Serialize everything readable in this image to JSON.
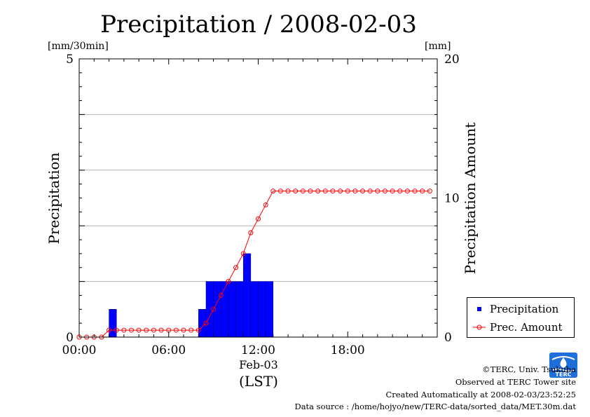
{
  "chart_data": {
    "type": "bar+line",
    "title": "Precipitation / 2008-02-03",
    "left_unit": "[mm/30min]",
    "right_unit": "[mm]",
    "ylabel": "Precipitation",
    "ylabel_right": "Precipitation Amount",
    "xlabel": "(LST)",
    "x_date_label": "Feb-03",
    "ylim": [
      0,
      5
    ],
    "ylim_right": [
      0,
      20
    ],
    "y_ticks": [
      "0",
      "5"
    ],
    "y_right_ticks": [
      "0",
      "10",
      "20"
    ],
    "x_tick_labels": [
      "00:00",
      "06:00",
      "12:00",
      "18:00"
    ],
    "x_tick_hours": [
      0,
      6,
      12,
      18
    ],
    "x_range_hours": [
      0,
      24
    ],
    "grid": "horizontal",
    "legend_position": "bottom-right",
    "series": [
      {
        "name": "Precipitation",
        "kind": "bar",
        "color": "#0000ff",
        "values": [
          0,
          0,
          0,
          0,
          0.5,
          0,
          0,
          0,
          0,
          0,
          0,
          0,
          0,
          0,
          0,
          0,
          0.5,
          1,
          1,
          1,
          1,
          1,
          1.5,
          1,
          1,
          1,
          0,
          0,
          0,
          0,
          0,
          0,
          0,
          0,
          0,
          0,
          0,
          0,
          0,
          0,
          0,
          0,
          0,
          0,
          0,
          0,
          0,
          0
        ]
      },
      {
        "name": "Prec. Amount",
        "kind": "line",
        "color": "#ff0000",
        "values": [
          0,
          0,
          0,
          0,
          0.5,
          0.5,
          0.5,
          0.5,
          0.5,
          0.5,
          0.5,
          0.5,
          0.5,
          0.5,
          0.5,
          0.5,
          0.5,
          1,
          2,
          3,
          4,
          5,
          6,
          7.5,
          8.5,
          9.5,
          10.5,
          10.5,
          10.5,
          10.5,
          10.5,
          10.5,
          10.5,
          10.5,
          10.5,
          10.5,
          10.5,
          10.5,
          10.5,
          10.5,
          10.5,
          10.5,
          10.5,
          10.5,
          10.5,
          10.5,
          10.5,
          10.5
        ]
      }
    ]
  },
  "legend": {
    "items": [
      "Precipitation",
      "Prec. Amount"
    ]
  },
  "footer": {
    "copyright": "©TERC, Univ. Tsukuba",
    "observed": "Observed at TERC Tower site",
    "created": "Created Automatically at 2008-02-03/23:52:25",
    "source": "Data source : /home/hojyo/new/TERC-data/sorted_data/MET.30m.dat"
  },
  "logo": {
    "text": "TERC",
    "color": "#1e6fd9"
  }
}
